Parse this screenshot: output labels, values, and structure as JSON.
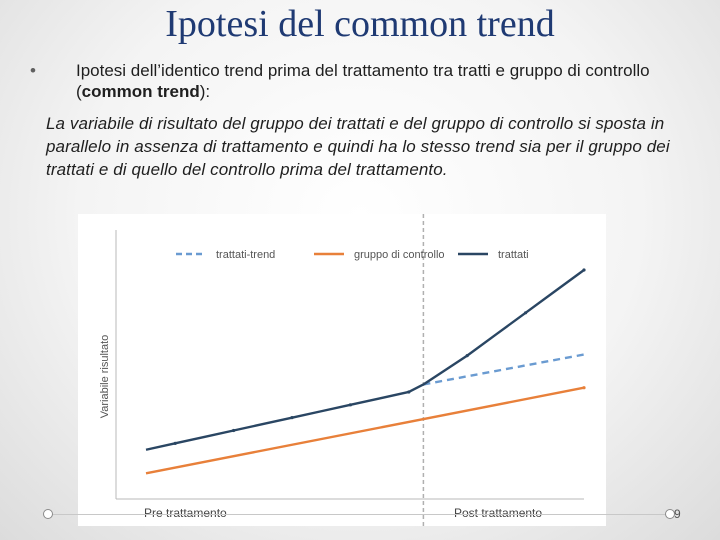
{
  "slide": {
    "title": "Ipotesi del common trend",
    "bullet_marker": "•",
    "bullet_text_pre": "Ipotesi dell’identico trend prima del trattamento tra tratti e gruppo di controllo (",
    "bullet_text_bold": "common trend",
    "bullet_text_post": "):",
    "paragraph": "La variabile di risultato del gruppo dei trattati e del gruppo di controllo si sposta in parallelo in assenza di trattamento e quindi ha lo stesso trend sia per  il gruppo dei trattati e di quello del controllo prima del trattamento.",
    "page_number": "9"
  },
  "chart_data": {
    "type": "line",
    "ylabel": "Variabile risultato",
    "x_period_labels": [
      "Pre trattamento",
      "Post trattamento"
    ],
    "x": [
      0,
      1,
      2,
      3,
      4,
      5,
      6,
      7,
      8,
      9,
      10,
      11,
      12,
      13,
      14,
      15
    ],
    "xlim": [
      0,
      15
    ],
    "ylim": [
      0,
      100
    ],
    "treatment_x": 9.5,
    "legend_position": "top",
    "grid": false,
    "colors": {
      "trend": "#6a9bd1",
      "control": "#e8803a",
      "treated": "#2a4663",
      "divider": "#b0b0b0"
    },
    "series": [
      {
        "name": "trattati-trend",
        "style": "dashed",
        "color": "#6a9bd1",
        "x": [
          9.5,
          15
        ],
        "values": [
          46.5,
          60.5
        ]
      },
      {
        "name": "gruppo di controllo",
        "style": "solid",
        "color": "#e8803a",
        "x": [
          0,
          15
        ],
        "values": [
          5,
          45
        ]
      },
      {
        "name": "trattati",
        "style": "solid",
        "color": "#2a4663",
        "x": [
          0,
          1,
          2,
          3,
          4,
          5,
          6,
          7,
          8,
          9,
          9.5,
          10,
          11,
          12,
          13,
          14,
          15
        ],
        "values": [
          16,
          19,
          22,
          25,
          28,
          31,
          34,
          37,
          40,
          43,
          46.5,
          51,
          60,
          70,
          80,
          90,
          100
        ]
      }
    ]
  }
}
